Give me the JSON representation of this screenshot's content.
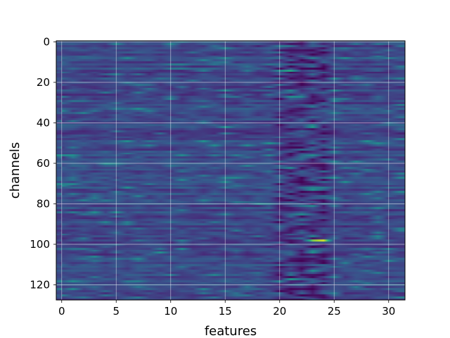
{
  "chart_data": {
    "type": "heatmap",
    "title": "",
    "xlabel": "features",
    "ylabel": "channels",
    "colormap": "viridis",
    "grid": true,
    "n_cols": 32,
    "n_rows": 128,
    "xlim": [
      -0.5,
      31.5
    ],
    "ylim": [
      127.5,
      -0.5
    ],
    "x_ticks": [
      0,
      5,
      10,
      15,
      20,
      25,
      30
    ],
    "x_tick_labels": [
      "0",
      "5",
      "10",
      "15",
      "20",
      "25",
      "30"
    ],
    "y_ticks": [
      0,
      20,
      40,
      60,
      80,
      100,
      120
    ],
    "y_tick_labels": [
      "0",
      "20",
      "40",
      "60",
      "80",
      "100",
      "120"
    ],
    "value_range": [
      0,
      1
    ],
    "base_level": 0.22,
    "dark_band_columns": [
      20,
      21,
      22,
      23,
      24
    ],
    "dark_band_level": 0.1,
    "highlights": [
      {
        "row": 98,
        "col": 24,
        "value": 0.95
      },
      {
        "row": 98,
        "col": 23,
        "value": 0.8
      },
      {
        "row": 14,
        "col": 21,
        "value": 0.6
      },
      {
        "row": 42,
        "col": 23,
        "value": 0.55
      },
      {
        "row": 117,
        "col": 21,
        "value": 0.55
      },
      {
        "row": 104,
        "col": 9,
        "value": 0.52
      },
      {
        "row": 71,
        "col": 0,
        "value": 0.5
      },
      {
        "row": 73,
        "col": 23,
        "value": 0.5
      },
      {
        "row": 85,
        "col": 22,
        "value": 0.48
      },
      {
        "row": 24,
        "col": 21,
        "value": 0.45
      },
      {
        "row": 35,
        "col": 2,
        "value": 0.45
      },
      {
        "row": 56,
        "col": 14,
        "value": 0.42
      },
      {
        "row": 125,
        "col": 0,
        "value": 0.45
      },
      {
        "row": 18,
        "col": 31,
        "value": 0.42
      },
      {
        "row": 80,
        "col": 19,
        "value": 0.42
      },
      {
        "row": 2,
        "col": 20,
        "value": 0.42
      },
      {
        "row": 23,
        "col": 8,
        "value": 0.4
      },
      {
        "row": 62,
        "col": 26,
        "value": 0.4
      },
      {
        "row": 92,
        "col": 31,
        "value": 0.42
      }
    ]
  }
}
